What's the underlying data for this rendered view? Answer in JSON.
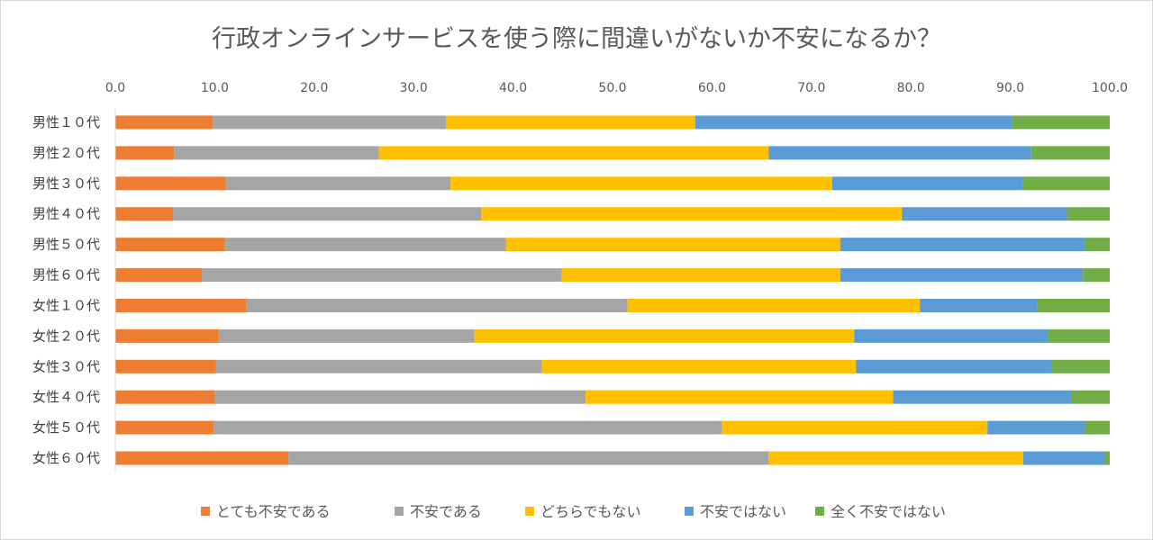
{
  "chart_data": {
    "type": "bar",
    "orientation": "horizontal",
    "stacked": true,
    "title": "行政オンラインサービスを使う際に間違いがないか不安になるか？",
    "xlim": [
      0,
      100
    ],
    "x_ticks": [
      "0.0",
      "10.0",
      "20.0",
      "30.0",
      "40.0",
      "50.0",
      "60.0",
      "70.0",
      "80.0",
      "90.0",
      "100.0"
    ],
    "x_axis_position": "top",
    "grid": false,
    "legend_position": "bottom",
    "categories": [
      "男性１０代",
      "男性２０代",
      "男性３０代",
      "男性４０代",
      "男性５０代",
      "男性６０代",
      "女性１０代",
      "女性２０代",
      "女性３０代",
      "女性４０代",
      "女性５０代",
      "女性６０代"
    ],
    "series": [
      {
        "name": "とても不安である",
        "color": "#ed7d31",
        "values": [
          9.8,
          5.9,
          11.1,
          5.8,
          11.0,
          8.7,
          13.2,
          10.4,
          10.1,
          10.0,
          9.9,
          17.4
        ]
      },
      {
        "name": "不安である",
        "color": "#a5a5a5",
        "values": [
          23.5,
          20.6,
          22.6,
          31.0,
          28.3,
          36.2,
          38.3,
          25.7,
          32.8,
          37.3,
          51.1,
          48.3
        ]
      },
      {
        "name": "どちらでもない",
        "color": "#ffc000",
        "values": [
          25.0,
          39.2,
          38.4,
          42.3,
          33.6,
          28.0,
          29.4,
          38.2,
          31.6,
          30.9,
          26.7,
          25.6
        ]
      },
      {
        "name": "不安ではない",
        "color": "#5b9bd5",
        "values": [
          31.9,
          26.4,
          19.2,
          16.6,
          24.6,
          24.4,
          11.8,
          19.5,
          19.7,
          17.9,
          9.8,
          8.2
        ]
      },
      {
        "name": "全く不安ではない",
        "color": "#70ad47",
        "values": [
          9.8,
          7.9,
          8.7,
          4.3,
          2.5,
          2.7,
          7.3,
          6.2,
          5.8,
          3.9,
          2.5,
          0.5
        ]
      }
    ]
  }
}
